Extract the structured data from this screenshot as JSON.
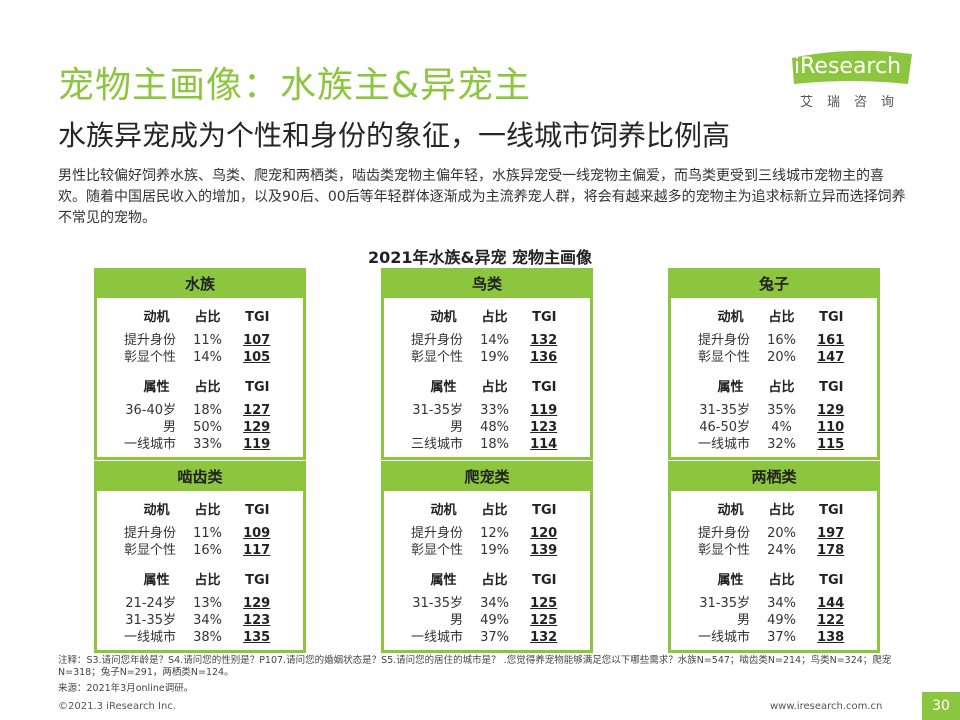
{
  "title": "宠物主画像：水族主&异宠主",
  "subtitle": "水族异宠成为个性和身份的象征，一线城市饲养比例高",
  "paragraph": "男性比较偏好饲养水族、鸟类、爬宠和两栖类，啮齿类宠物主偏年轻，水族异宠受一线宠物主偏爱，而鸟类更受到三线城市宠物主的喜欢。随着中国居民收入的增加，以及90后、00后等年轻群体逐渐成为主流养宠人群，将会有越来越多的宠物主为追求标新立异而选择饲养不常见的宠物。",
  "logo": {
    "text": "iResearch",
    "cn": "艾瑞咨询",
    "color": "#8cc63f"
  },
  "chart_title": "2021年水族&异宠 宠物主画像",
  "headers": {
    "motive": "动机",
    "share": "占比",
    "tgi": "TGI",
    "attribute": "属性"
  },
  "cards": [
    {
      "name": "水族",
      "motives": [
        {
          "label": "提升身份",
          "share": "11%",
          "tgi": "107"
        },
        {
          "label": "彰显个性",
          "share": "14%",
          "tgi": "105"
        }
      ],
      "attributes": [
        {
          "label": "36-40岁",
          "share": "18%",
          "tgi": "127"
        },
        {
          "label": "男",
          "share": "50%",
          "tgi": "129"
        },
        {
          "label": "一线城市",
          "share": "33%",
          "tgi": "119"
        }
      ]
    },
    {
      "name": "鸟类",
      "motives": [
        {
          "label": "提升身份",
          "share": "14%",
          "tgi": "132"
        },
        {
          "label": "彰显个性",
          "share": "19%",
          "tgi": "136"
        }
      ],
      "attributes": [
        {
          "label": "31-35岁",
          "share": "33%",
          "tgi": "119"
        },
        {
          "label": "男",
          "share": "48%",
          "tgi": "123"
        },
        {
          "label": "三线城市",
          "share": "18%",
          "tgi": "114"
        }
      ]
    },
    {
      "name": "兔子",
      "motives": [
        {
          "label": "提升身份",
          "share": "16%",
          "tgi": "161"
        },
        {
          "label": "彰显个性",
          "share": "20%",
          "tgi": "147"
        }
      ],
      "attributes": [
        {
          "label": "31-35岁",
          "share": "35%",
          "tgi": "129"
        },
        {
          "label": "46-50岁",
          "share": "4%",
          "tgi": "110"
        },
        {
          "label": "一线城市",
          "share": "32%",
          "tgi": "115"
        }
      ]
    },
    {
      "name": "啮齿类",
      "motives": [
        {
          "label": "提升身份",
          "share": "11%",
          "tgi": "109"
        },
        {
          "label": "彰显个性",
          "share": "16%",
          "tgi": "117"
        }
      ],
      "attributes": [
        {
          "label": "21-24岁",
          "share": "13%",
          "tgi": "129"
        },
        {
          "label": "31-35岁",
          "share": "34%",
          "tgi": "123"
        },
        {
          "label": "一线城市",
          "share": "38%",
          "tgi": "135"
        }
      ]
    },
    {
      "name": "爬宠类",
      "motives": [
        {
          "label": "提升身份",
          "share": "12%",
          "tgi": "120"
        },
        {
          "label": "彰显个性",
          "share": "19%",
          "tgi": "139"
        }
      ],
      "attributes": [
        {
          "label": "31-35岁",
          "share": "34%",
          "tgi": "125"
        },
        {
          "label": "男",
          "share": "49%",
          "tgi": "125"
        },
        {
          "label": "一线城市",
          "share": "37%",
          "tgi": "132"
        }
      ]
    },
    {
      "name": "两栖类",
      "motives": [
        {
          "label": "提升身份",
          "share": "20%",
          "tgi": "197"
        },
        {
          "label": "彰显个性",
          "share": "24%",
          "tgi": "178"
        }
      ],
      "attributes": [
        {
          "label": "31-35岁",
          "share": "34%",
          "tgi": "144"
        },
        {
          "label": "男",
          "share": "49%",
          "tgi": "122"
        },
        {
          "label": "一线城市",
          "share": "37%",
          "tgi": "138"
        }
      ]
    }
  ],
  "note": "注释：S3.请问您年龄是？S4.请问您的性别是？P107.请问您的婚姻状态是？S5.请问您的居住的城市是？ .您觉得养宠物能够满足您以下哪些需求？水族N=547；啮齿类N=214；鸟类N=324；爬宠N=318；兔子N=291，两栖类N=124。",
  "source": "来源：2021年3月online调研。",
  "footer_left": "©2021.3 iResearch Inc.",
  "footer_right": "www.iresearch.com.cn",
  "page_number": "30",
  "accent_color": "#8cc63f"
}
